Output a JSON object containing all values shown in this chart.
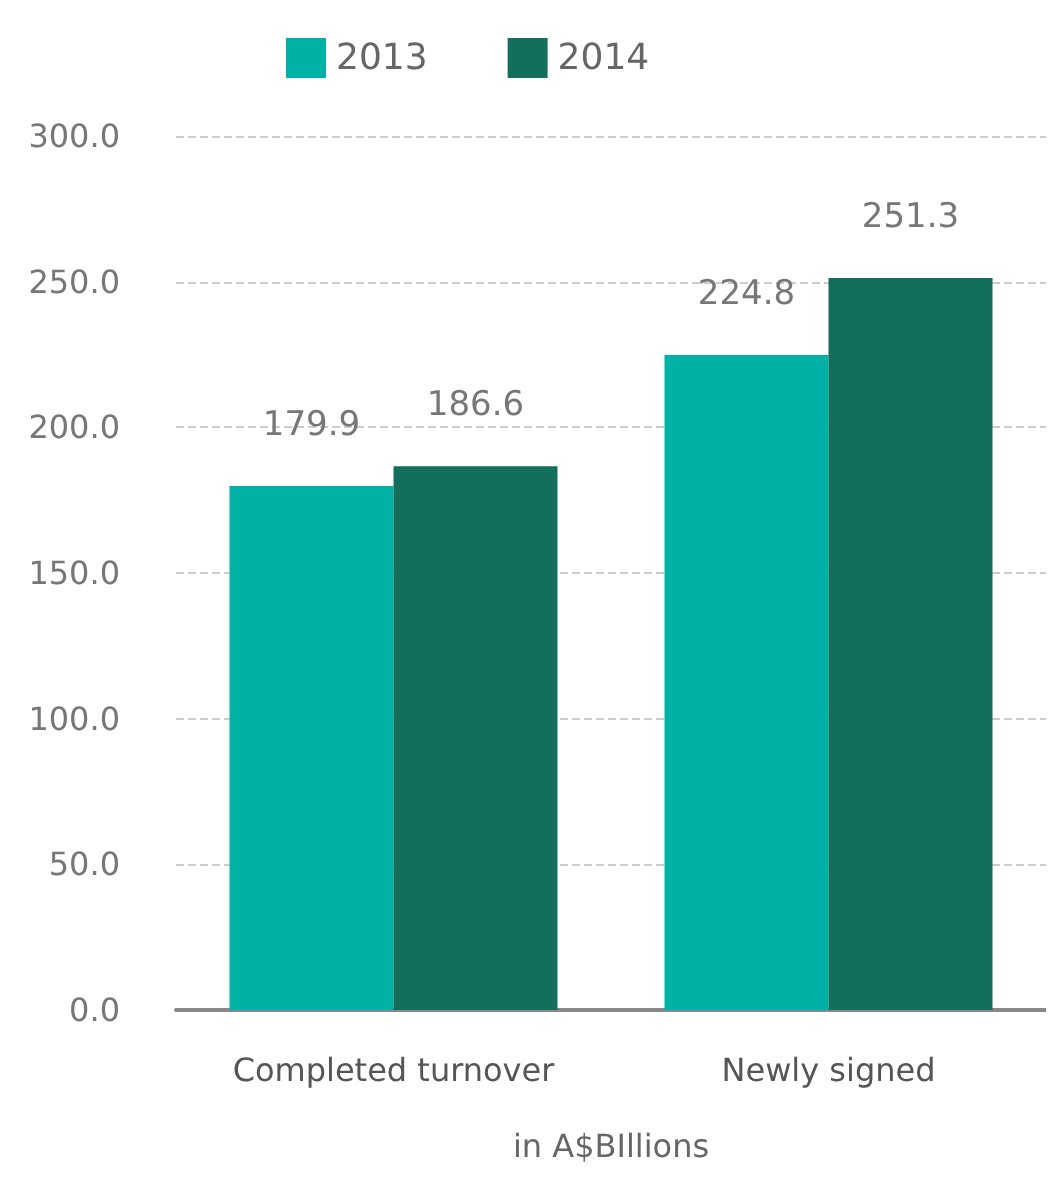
{
  "chart_data": {
    "type": "bar",
    "xlabel": "in A$BIllions",
    "categories": [
      "Completed turnover",
      "Newly signed"
    ],
    "series": [
      {
        "name": "2013",
        "color": "#00b1a5",
        "values": [
          179.9,
          224.8
        ]
      },
      {
        "name": "2014",
        "color": "#136e5c",
        "values": [
          186.6,
          251.3
        ]
      }
    ],
    "ylim": [
      0,
      300
    ],
    "yticks": [
      {
        "value": 0,
        "label": "0.0"
      },
      {
        "value": 50,
        "label": "50.0"
      },
      {
        "value": 100,
        "label": "100.0"
      },
      {
        "value": 150,
        "label": "150.0"
      },
      {
        "value": 200,
        "label": "200.0"
      },
      {
        "value": 250,
        "label": "250.0"
      },
      {
        "value": 300,
        "label": "300.0"
      }
    ],
    "grid": "y",
    "legend": "top",
    "data_labels": true
  }
}
